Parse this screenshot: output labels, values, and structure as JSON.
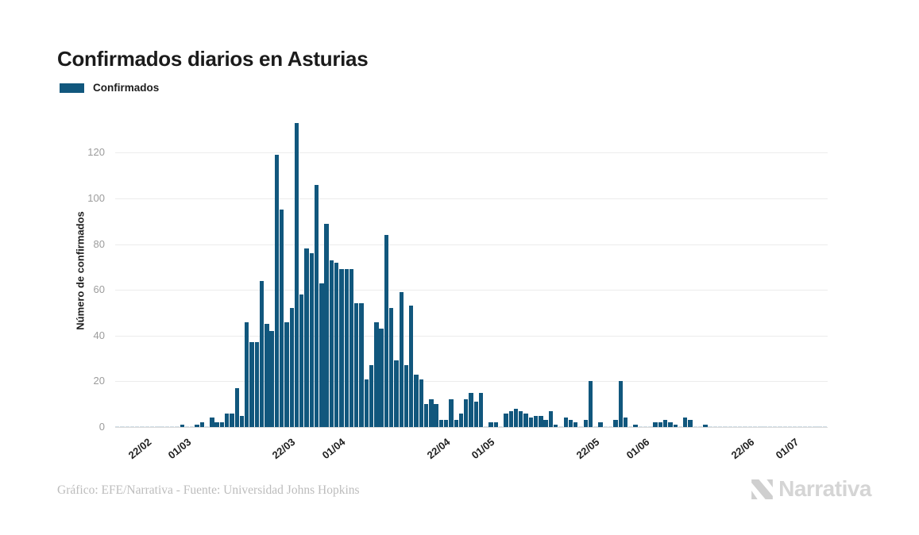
{
  "title": "Confirmados diarios en Asturias",
  "legend": {
    "label": "Confirmados",
    "color": "#11577d"
  },
  "footer": {
    "credit": "Gráfico: EFE/Narrativa - Fuente: Universidad Johns Hopkins"
  },
  "brand": {
    "name": "Narrativa",
    "icon": "narrativa-n-logo",
    "color": "#d5d5d5"
  },
  "chart_data": {
    "type": "bar",
    "title": "Confirmados diarios en Asturias",
    "xlabel": "",
    "ylabel": "Número de confirmados",
    "ylim": [
      0,
      136
    ],
    "yticks": [
      0,
      20,
      40,
      60,
      80,
      100,
      120
    ],
    "grid": true,
    "legend_position": "top-left",
    "bar_color": "#11577d",
    "gridline_color": "#ececec",
    "x_tick_labels": [
      "22/02",
      "01/03",
      "22/03",
      "01/04",
      "22/04",
      "01/05",
      "22/05",
      "01/06",
      "22/06",
      "01/07"
    ],
    "categories": [
      "17/02",
      "18/02",
      "19/02",
      "20/02",
      "21/02",
      "22/02",
      "23/02",
      "24/02",
      "25/02",
      "26/02",
      "27/02",
      "28/02",
      "29/02",
      "01/03",
      "02/03",
      "03/03",
      "04/03",
      "05/03",
      "06/03",
      "07/03",
      "08/03",
      "09/03",
      "10/03",
      "11/03",
      "12/03",
      "13/03",
      "14/03",
      "15/03",
      "16/03",
      "17/03",
      "18/03",
      "19/03",
      "20/03",
      "21/03",
      "22/03",
      "23/03",
      "24/03",
      "25/03",
      "26/03",
      "27/03",
      "28/03",
      "29/03",
      "30/03",
      "31/03",
      "01/04",
      "02/04",
      "03/04",
      "04/04",
      "05/04",
      "06/04",
      "07/04",
      "08/04",
      "09/04",
      "10/04",
      "11/04",
      "12/04",
      "13/04",
      "14/04",
      "15/04",
      "16/04",
      "17/04",
      "18/04",
      "19/04",
      "20/04",
      "21/04",
      "22/04",
      "23/04",
      "24/04",
      "25/04",
      "26/04",
      "27/04",
      "28/04",
      "29/04",
      "30/04",
      "01/05",
      "02/05",
      "03/05",
      "04/05",
      "05/05",
      "06/05",
      "07/05",
      "08/05",
      "09/05",
      "10/05",
      "11/05",
      "12/05",
      "13/05",
      "14/05",
      "15/05",
      "16/05",
      "17/05",
      "18/05",
      "19/05",
      "20/05",
      "21/05",
      "22/05",
      "23/05",
      "24/05",
      "25/05",
      "26/05",
      "27/05",
      "28/05",
      "29/05",
      "30/05",
      "31/05",
      "01/06",
      "02/06",
      "03/06",
      "04/06",
      "05/06",
      "06/06",
      "07/06",
      "08/06",
      "09/06",
      "10/06",
      "11/06",
      "12/06",
      "13/06",
      "14/06",
      "15/06",
      "16/06",
      "17/06",
      "18/06",
      "19/06",
      "20/06",
      "21/06",
      "22/06",
      "23/06",
      "24/06",
      "25/06",
      "26/06",
      "27/06",
      "28/06",
      "29/06",
      "30/06",
      "01/07",
      "02/07",
      "03/07",
      "04/07",
      "05/07",
      "06/07",
      "07/07",
      "08/07"
    ],
    "series": [
      {
        "name": "Confirmados",
        "values": [
          0,
          0,
          0,
          0,
          0,
          0,
          0,
          0,
          0,
          0,
          0,
          0,
          0,
          1,
          0,
          0,
          1,
          2,
          0,
          4,
          2,
          2,
          6,
          6,
          17,
          5,
          46,
          37,
          37,
          64,
          45,
          42,
          119,
          95,
          46,
          52,
          133,
          58,
          78,
          76,
          106,
          63,
          89,
          73,
          72,
          69,
          69,
          69,
          54,
          54,
          21,
          27,
          46,
          43,
          84,
          52,
          29,
          59,
          27,
          53,
          23,
          21,
          10,
          12,
          10,
          3,
          3,
          12,
          3,
          6,
          12,
          15,
          11,
          15,
          0,
          2,
          2,
          0,
          6,
          7,
          8,
          7,
          6,
          4,
          5,
          5,
          3,
          7,
          1,
          0,
          4,
          3,
          2,
          0,
          3,
          20,
          0,
          2,
          0,
          0,
          3,
          20,
          4,
          0,
          1,
          0,
          0,
          0,
          2,
          2,
          3,
          2,
          1,
          0,
          4,
          3,
          0,
          0,
          1,
          0,
          0,
          0,
          0,
          0,
          0,
          0,
          0,
          0,
          0,
          0,
          0,
          0,
          0,
          0,
          0,
          0,
          0,
          0,
          0,
          0,
          0,
          0,
          0
        ]
      }
    ]
  }
}
